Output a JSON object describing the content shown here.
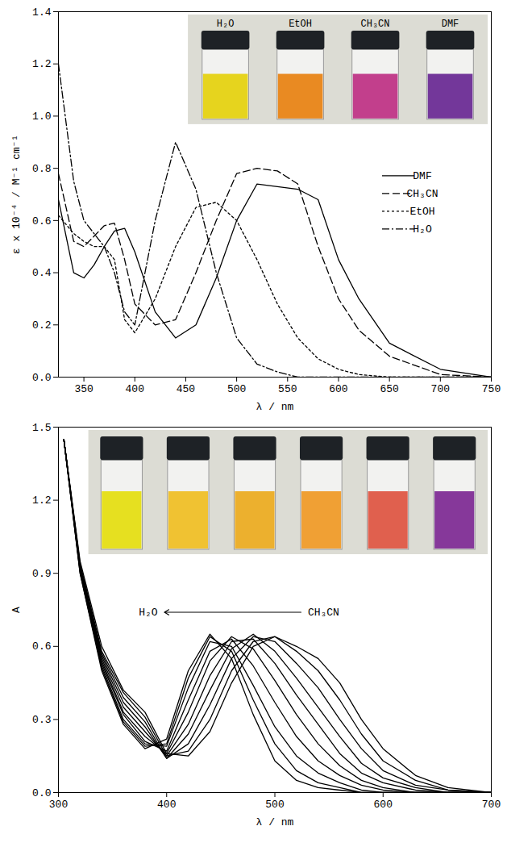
{
  "chart_data": [
    {
      "type": "line",
      "x_label": "λ / nm",
      "y_label": "ε x 10⁻⁴ / M⁻¹ cm⁻¹",
      "x": [
        325,
        340,
        350,
        360,
        370,
        380,
        390,
        400,
        420,
        440,
        460,
        480,
        500,
        520,
        540,
        560,
        580,
        600,
        620,
        650,
        700,
        750
      ],
      "series": [
        {
          "name": "DMF",
          "color": "#000000",
          "line_style": "solid",
          "values": [
            0.68,
            0.4,
            0.38,
            0.43,
            0.5,
            0.56,
            0.57,
            0.48,
            0.25,
            0.15,
            0.2,
            0.38,
            0.6,
            0.74,
            0.73,
            0.72,
            0.68,
            0.45,
            0.3,
            0.13,
            0.03,
            0.0
          ]
        },
        {
          "name": "CH₃CN",
          "color": "#000000",
          "line_style": "dashed",
          "values": [
            0.78,
            0.52,
            0.5,
            0.54,
            0.58,
            0.59,
            0.45,
            0.28,
            0.2,
            0.22,
            0.4,
            0.6,
            0.78,
            0.8,
            0.79,
            0.74,
            0.5,
            0.3,
            0.18,
            0.08,
            0.01,
            0.0
          ]
        },
        {
          "name": "EtOH",
          "color": "#000000",
          "line_style": "dotted",
          "values": [
            0.62,
            0.55,
            0.52,
            0.5,
            0.5,
            0.45,
            0.22,
            0.17,
            0.3,
            0.5,
            0.65,
            0.67,
            0.6,
            0.45,
            0.28,
            0.15,
            0.07,
            0.03,
            0.01,
            0.0,
            0.0,
            0.0
          ]
        },
        {
          "name": "H₂O",
          "color": "#000000",
          "line_style": "dashdot",
          "values": [
            1.2,
            0.75,
            0.6,
            0.55,
            0.5,
            0.4,
            0.25,
            0.2,
            0.6,
            0.9,
            0.72,
            0.4,
            0.15,
            0.05,
            0.02,
            0.0,
            0.0,
            0.0,
            0.0,
            0.0,
            0.0,
            0.0
          ]
        }
      ],
      "xlim": [
        325,
        750
      ],
      "xticks": [
        350,
        400,
        450,
        500,
        550,
        600,
        650,
        700,
        750
      ],
      "ylim": [
        0,
        1.4
      ],
      "yticks": [
        {
          "value": 0,
          "label": "0.0"
        },
        0.2,
        0.4,
        0.6,
        0.8,
        {
          "value": 1,
          "label": "1.0"
        },
        1.2,
        1.4
      ],
      "legend": "right",
      "inset": {
        "labels": [
          "H₂O",
          "EtOH",
          "CH₃CN",
          "DMF"
        ]
      }
    },
    {
      "type": "line",
      "x_label": "λ / nm",
      "y_label": "A",
      "x": [
        305,
        320,
        340,
        360,
        380,
        400,
        420,
        440,
        460,
        480,
        500,
        520,
        540,
        560,
        580,
        600,
        630,
        660,
        700
      ],
      "series": [
        {
          "color": "#000000",
          "values": [
            1.45,
            0.95,
            0.6,
            0.42,
            0.33,
            0.16,
            0.15,
            0.25,
            0.45,
            0.6,
            0.64,
            0.6,
            0.55,
            0.45,
            0.3,
            0.18,
            0.07,
            0.02,
            0.0
          ]
        },
        {
          "color": "#000000",
          "values": [
            1.45,
            0.94,
            0.58,
            0.41,
            0.31,
            0.15,
            0.17,
            0.3,
            0.5,
            0.62,
            0.64,
            0.58,
            0.5,
            0.38,
            0.24,
            0.13,
            0.05,
            0.01,
            0.0
          ]
        },
        {
          "color": "#000000",
          "values": [
            1.45,
            0.93,
            0.57,
            0.39,
            0.29,
            0.14,
            0.2,
            0.36,
            0.55,
            0.64,
            0.62,
            0.53,
            0.43,
            0.3,
            0.18,
            0.09,
            0.03,
            0.01,
            0.0
          ]
        },
        {
          "color": "#000000",
          "values": [
            1.45,
            0.93,
            0.56,
            0.37,
            0.27,
            0.14,
            0.24,
            0.42,
            0.59,
            0.65,
            0.58,
            0.47,
            0.35,
            0.23,
            0.12,
            0.06,
            0.02,
            0.0,
            0.0
          ]
        },
        {
          "color": "#000000",
          "values": [
            1.45,
            0.92,
            0.55,
            0.35,
            0.25,
            0.15,
            0.28,
            0.48,
            0.62,
            0.63,
            0.53,
            0.4,
            0.28,
            0.16,
            0.08,
            0.04,
            0.01,
            0.0,
            0.0
          ]
        },
        {
          "color": "#000000",
          "values": [
            1.45,
            0.92,
            0.54,
            0.33,
            0.23,
            0.16,
            0.33,
            0.54,
            0.64,
            0.59,
            0.46,
            0.32,
            0.2,
            0.11,
            0.05,
            0.02,
            0.0,
            0.0,
            0.0
          ]
        },
        {
          "color": "#000000",
          "values": [
            1.45,
            0.91,
            0.53,
            0.32,
            0.21,
            0.17,
            0.38,
            0.58,
            0.63,
            0.52,
            0.37,
            0.23,
            0.13,
            0.07,
            0.03,
            0.01,
            0.0,
            0.0,
            0.0
          ]
        },
        {
          "color": "#000000",
          "values": [
            1.45,
            0.91,
            0.52,
            0.3,
            0.2,
            0.19,
            0.43,
            0.62,
            0.6,
            0.44,
            0.27,
            0.15,
            0.08,
            0.04,
            0.01,
            0.0,
            0.0,
            0.0,
            0.0
          ]
        },
        {
          "color": "#000000",
          "values": [
            1.45,
            0.9,
            0.51,
            0.29,
            0.19,
            0.2,
            0.47,
            0.64,
            0.58,
            0.38,
            0.2,
            0.09,
            0.04,
            0.02,
            0.0,
            0.0,
            0.0,
            0.0,
            0.0
          ]
        },
        {
          "color": "#000000",
          "values": [
            1.45,
            0.9,
            0.5,
            0.28,
            0.18,
            0.22,
            0.5,
            0.65,
            0.55,
            0.32,
            0.13,
            0.05,
            0.02,
            0.01,
            0.0,
            0.0,
            0.0,
            0.0,
            0.0
          ]
        }
      ],
      "xlim": [
        300,
        700
      ],
      "xticks": [
        300,
        400,
        500,
        600,
        700
      ],
      "ylim": [
        0,
        1.5
      ],
      "yticks": [
        {
          "value": 0,
          "label": "0.0"
        },
        0.3,
        0.6,
        0.9,
        1.2,
        1.5
      ],
      "annotations": [
        {
          "text": "H₂O",
          "x": 383,
          "y": 0.74
        },
        {
          "text": "CH₃CN",
          "x": 545,
          "y": 0.74
        }
      ]
    }
  ]
}
